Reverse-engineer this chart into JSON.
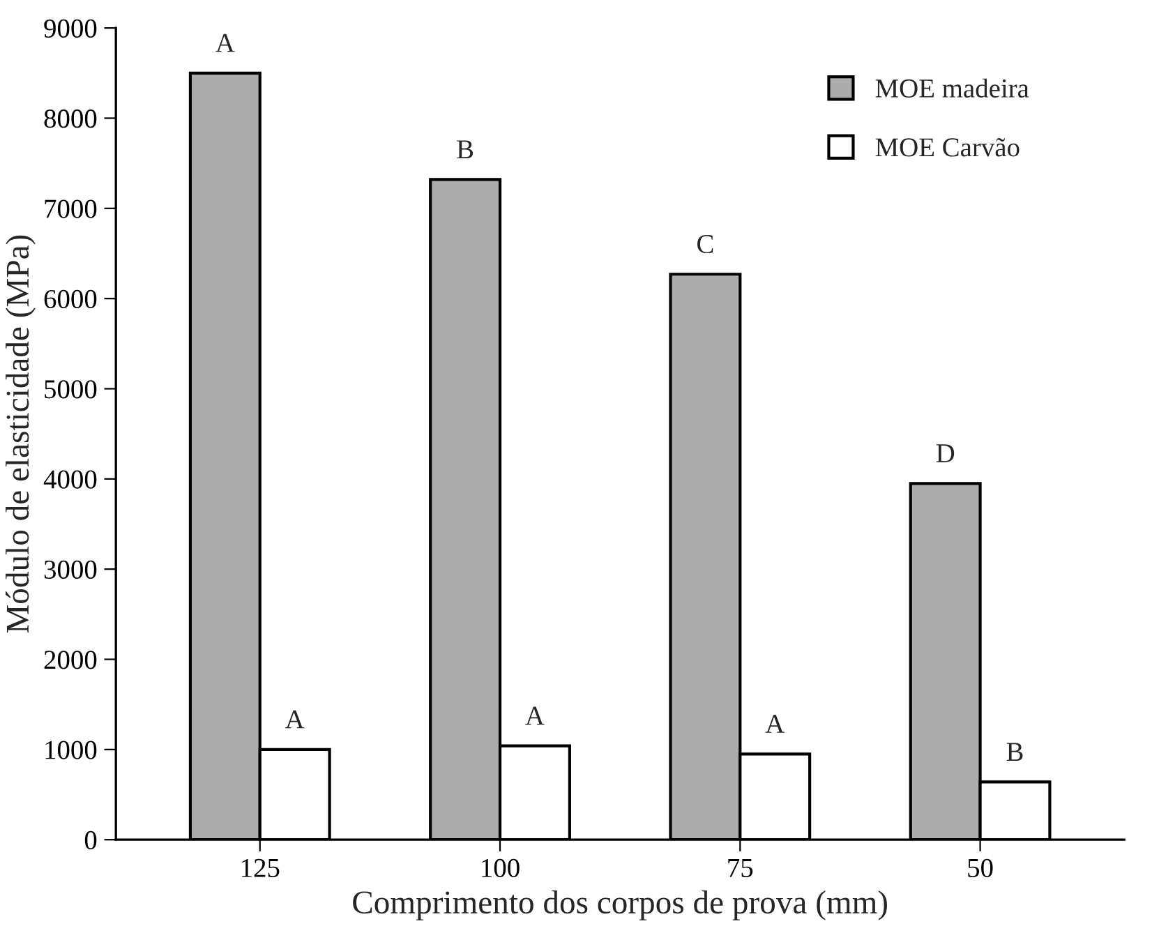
{
  "chart_data": {
    "type": "bar",
    "xlabel": "Comprimento dos corpos de prova (mm)",
    "ylabel": "Módulo de elasticidade (MPa)",
    "categories": [
      "125",
      "100",
      "75",
      "50"
    ],
    "series": [
      {
        "name": "MOE madeira",
        "color": "#acacac",
        "values": [
          8500,
          7320,
          6270,
          3950
        ],
        "value_labels": [
          "A",
          "B",
          "C",
          "D"
        ]
      },
      {
        "name": "MOE Carvão",
        "color": "#ffffff",
        "values": [
          1000,
          1040,
          950,
          640
        ],
        "value_labels": [
          "A",
          "A",
          "A",
          "B"
        ]
      }
    ],
    "ylim": [
      0,
      9000
    ],
    "yticks": [
      0,
      1000,
      2000,
      3000,
      4000,
      5000,
      6000,
      7000,
      8000,
      9000
    ],
    "grid": false,
    "legend": "top right"
  }
}
